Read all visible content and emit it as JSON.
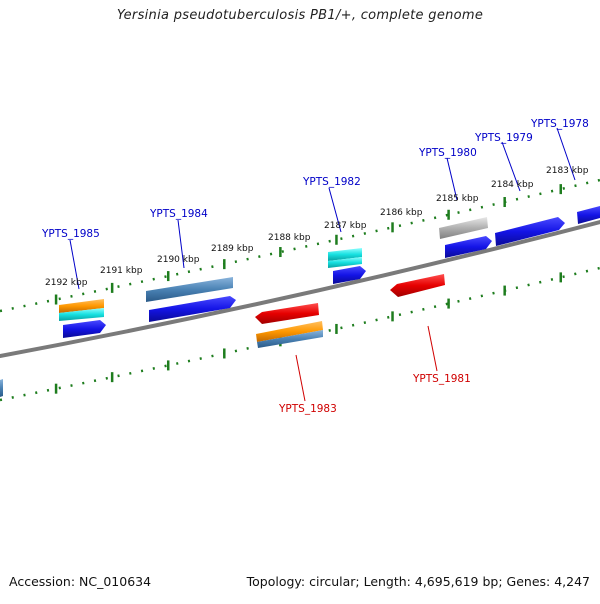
{
  "title": "Yersinia pseudotuberculosis PB1/+, complete genome",
  "footer": {
    "accession": "Accession: NC_010634",
    "summary": "Topology: circular; Length: 4,695,619 bp; Genes: 4,247"
  },
  "colors": {
    "backbone": "#808080",
    "ticks": "#1e7d1e",
    "gene_blue": "#1414e6",
    "gene_red": "#e60000",
    "gene_orange": "#ff9800",
    "gene_cyan": "#16e0e0",
    "gene_steel": "#4a82b4",
    "gene_gray": "#b0b0b0",
    "label_forward": "#0000c8",
    "label_reverse": "#d00000"
  },
  "tick_labels": [
    "2192 kbp",
    "2191 kbp",
    "2190 kbp",
    "2189 kbp",
    "2188 kbp",
    "2187 kbp",
    "2186 kbp",
    "2185 kbp",
    "2184 kbp",
    "2183 kbp"
  ],
  "gene_labels": {
    "forward": [
      "YPTS_1985",
      "YPTS_1984",
      "YPTS_1982",
      "YPTS_1980",
      "YPTS_1979",
      "YPTS_1978"
    ],
    "reverse": [
      "YPTS_1983",
      "YPTS_1981"
    ]
  }
}
